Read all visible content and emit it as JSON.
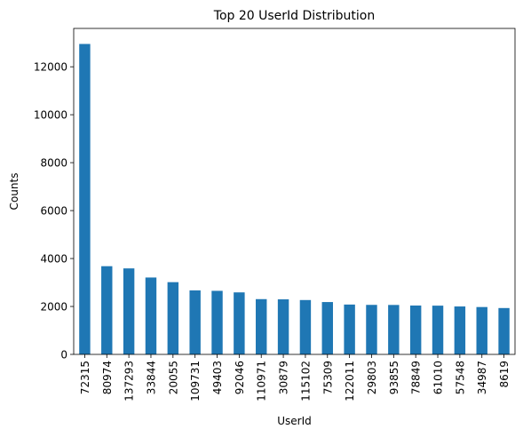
{
  "chart_data": {
    "type": "bar",
    "title": "Top 20 UserId Distribution",
    "xlabel": "UserId",
    "ylabel": "Counts",
    "ylim": [
      0,
      13600
    ],
    "yticks": [
      0,
      2000,
      4000,
      6000,
      8000,
      10000,
      12000
    ],
    "categories": [
      "72315",
      "80974",
      "137293",
      "33844",
      "20055",
      "109731",
      "49403",
      "92046",
      "110971",
      "30879",
      "115102",
      "75309",
      "122011",
      "29803",
      "93855",
      "78849",
      "61010",
      "57548",
      "34987",
      "8619"
    ],
    "values": [
      12952,
      3680,
      3588,
      3208,
      3014,
      2671,
      2652,
      2587,
      2306,
      2297,
      2268,
      2184,
      2080,
      2066,
      2063,
      2039,
      2034,
      2000,
      1976,
      1934
    ],
    "bar_color": "#1f77b4",
    "grid": false,
    "legend": "none"
  }
}
